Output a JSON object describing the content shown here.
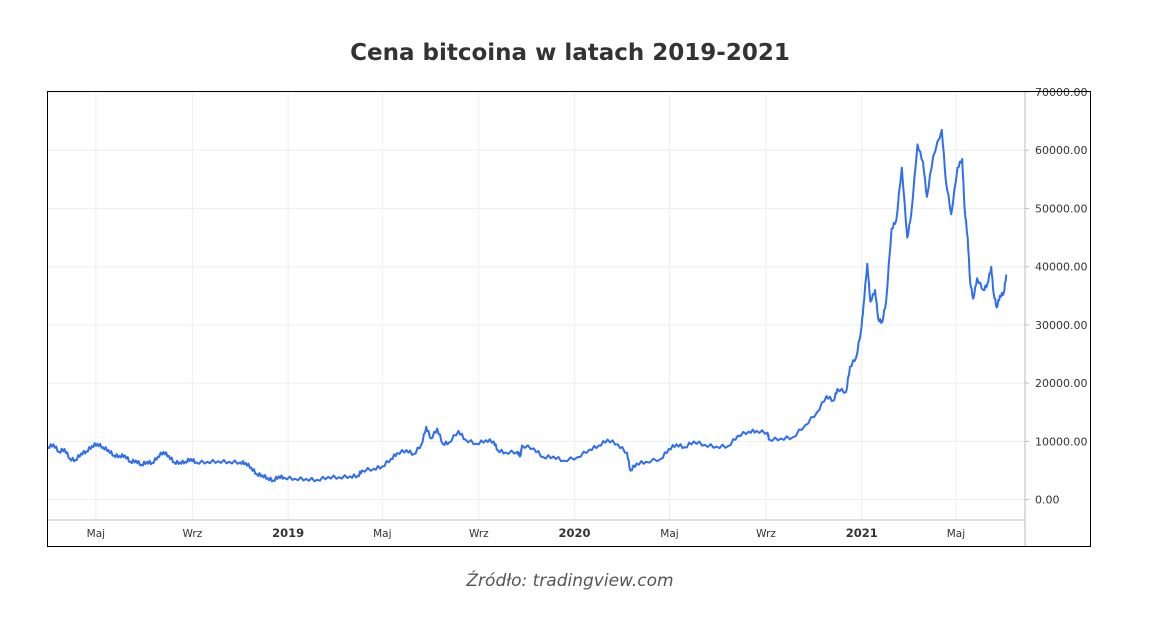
{
  "title": "Cena bitcoina w latach 2019-2021",
  "source": "Źródło: tradingview.com",
  "colors": {
    "line": "#2f6ef0",
    "grid": "#eeeeee",
    "frame": "#000000",
    "text": "#333333"
  },
  "chart_data": {
    "type": "line",
    "title": "Cena bitcoina w latach 2019-2021",
    "xlabel": "",
    "ylabel": "",
    "ylim": [
      -3500,
      70000
    ],
    "xlim": [
      "2018-03-01",
      "2021-07-28"
    ],
    "grid": true,
    "y_ticks": [
      {
        "value": 70000,
        "label": "70000.00"
      },
      {
        "value": 60000,
        "label": "60000.00"
      },
      {
        "value": 50000,
        "label": "50000.00"
      },
      {
        "value": 40000,
        "label": "40000.00"
      },
      {
        "value": 30000,
        "label": "30000.00"
      },
      {
        "value": 20000,
        "label": "20000.00"
      },
      {
        "value": 10000,
        "label": "10000.00"
      },
      {
        "value": 0,
        "label": "0.00"
      }
    ],
    "x_ticks": [
      {
        "date": "2018-05-01",
        "label": "Maj",
        "bold": false
      },
      {
        "date": "2018-09-01",
        "label": "Wrz",
        "bold": false
      },
      {
        "date": "2019-01-01",
        "label": "2019",
        "bold": true
      },
      {
        "date": "2019-05-01",
        "label": "Maj",
        "bold": false
      },
      {
        "date": "2019-09-01",
        "label": "Wrz",
        "bold": false
      },
      {
        "date": "2020-01-01",
        "label": "2020",
        "bold": true
      },
      {
        "date": "2020-05-01",
        "label": "Maj",
        "bold": false
      },
      {
        "date": "2020-09-01",
        "label": "Wrz",
        "bold": false
      },
      {
        "date": "2021-01-01",
        "label": "2021",
        "bold": true
      },
      {
        "date": "2021-05-01",
        "label": "Maj",
        "bold": false
      }
    ],
    "series": [
      {
        "color": "#2f6ef0",
        "points": [
          [
            "2018-03-01",
            9000
          ],
          [
            "2018-03-08",
            9500
          ],
          [
            "2018-03-15",
            8200
          ],
          [
            "2018-03-22",
            8700
          ],
          [
            "2018-03-29",
            7000
          ],
          [
            "2018-04-05",
            6800
          ],
          [
            "2018-04-12",
            7900
          ],
          [
            "2018-04-19",
            8300
          ],
          [
            "2018-04-26",
            9200
          ],
          [
            "2018-05-03",
            9600
          ],
          [
            "2018-05-10",
            9000
          ],
          [
            "2018-05-17",
            8500
          ],
          [
            "2018-05-24",
            7600
          ],
          [
            "2018-05-31",
            7500
          ],
          [
            "2018-06-07",
            7600
          ],
          [
            "2018-06-14",
            6500
          ],
          [
            "2018-06-21",
            6700
          ],
          [
            "2018-06-28",
            6000
          ],
          [
            "2018-07-05",
            6500
          ],
          [
            "2018-07-12",
            6300
          ],
          [
            "2018-07-19",
            7400
          ],
          [
            "2018-07-26",
            8200
          ],
          [
            "2018-08-02",
            7500
          ],
          [
            "2018-08-09",
            6400
          ],
          [
            "2018-08-16",
            6400
          ],
          [
            "2018-08-23",
            6500
          ],
          [
            "2018-08-30",
            7000
          ],
          [
            "2018-09-06",
            6400
          ],
          [
            "2018-09-20",
            6500
          ],
          [
            "2018-10-04",
            6600
          ],
          [
            "2018-10-18",
            6500
          ],
          [
            "2018-11-01",
            6400
          ],
          [
            "2018-11-08",
            6300
          ],
          [
            "2018-11-15",
            5500
          ],
          [
            "2018-11-22",
            4400
          ],
          [
            "2018-11-29",
            4200
          ],
          [
            "2018-12-06",
            3700
          ],
          [
            "2018-12-13",
            3300
          ],
          [
            "2018-12-20",
            4000
          ],
          [
            "2018-12-27",
            3800
          ],
          [
            "2019-01-10",
            3600
          ],
          [
            "2019-01-24",
            3550
          ],
          [
            "2019-02-07",
            3400
          ],
          [
            "2019-02-21",
            3900
          ],
          [
            "2019-03-07",
            3850
          ],
          [
            "2019-03-21",
            4000
          ],
          [
            "2019-03-31",
            4100
          ],
          [
            "2019-04-05",
            5000
          ],
          [
            "2019-04-20",
            5300
          ],
          [
            "2019-05-01",
            5700
          ],
          [
            "2019-05-12",
            7000
          ],
          [
            "2019-05-20",
            8000
          ],
          [
            "2019-06-01",
            8500
          ],
          [
            "2019-06-10",
            7800
          ],
          [
            "2019-06-20",
            9500
          ],
          [
            "2019-06-26",
            12500
          ],
          [
            "2019-07-02",
            10500
          ],
          [
            "2019-07-10",
            12200
          ],
          [
            "2019-07-17",
            9600
          ],
          [
            "2019-07-25",
            9800
          ],
          [
            "2019-08-06",
            11800
          ],
          [
            "2019-08-15",
            10300
          ],
          [
            "2019-08-29",
            9600
          ],
          [
            "2019-09-10",
            10200
          ],
          [
            "2019-09-20",
            10000
          ],
          [
            "2019-09-25",
            8500
          ],
          [
            "2019-10-05",
            8100
          ],
          [
            "2019-10-20",
            8200
          ],
          [
            "2019-10-24",
            7500
          ],
          [
            "2019-10-26",
            9300
          ],
          [
            "2019-11-10",
            8800
          ],
          [
            "2019-11-22",
            7300
          ],
          [
            "2019-12-05",
            7400
          ],
          [
            "2019-12-18",
            6700
          ],
          [
            "2020-01-05",
            7300
          ],
          [
            "2020-01-20",
            8600
          ],
          [
            "2020-02-01",
            9300
          ],
          [
            "2020-02-12",
            10300
          ],
          [
            "2020-02-25",
            9500
          ],
          [
            "2020-03-08",
            8000
          ],
          [
            "2020-03-12",
            5000
          ],
          [
            "2020-03-20",
            6200
          ],
          [
            "2020-04-01",
            6500
          ],
          [
            "2020-04-20",
            7000
          ],
          [
            "2020-04-30",
            8700
          ],
          [
            "2020-05-10",
            9500
          ],
          [
            "2020-05-20",
            9000
          ],
          [
            "2020-06-01",
            10000
          ],
          [
            "2020-06-15",
            9400
          ],
          [
            "2020-06-30",
            9100
          ],
          [
            "2020-07-15",
            9200
          ],
          [
            "2020-07-27",
            11000
          ],
          [
            "2020-08-10",
            11700
          ],
          [
            "2020-08-20",
            11800
          ],
          [
            "2020-09-03",
            11500
          ],
          [
            "2020-09-05",
            10300
          ],
          [
            "2020-09-20",
            10500
          ],
          [
            "2020-10-05",
            10700
          ],
          [
            "2020-10-21",
            12800
          ],
          [
            "2020-11-05",
            15000
          ],
          [
            "2020-11-17",
            17800
          ],
          [
            "2020-11-26",
            17000
          ],
          [
            "2020-12-01",
            19000
          ],
          [
            "2020-12-12",
            18500
          ],
          [
            "2020-12-17",
            22800
          ],
          [
            "2020-12-25",
            24500
          ],
          [
            "2020-12-31",
            29000
          ],
          [
            "2021-01-03",
            33000
          ],
          [
            "2021-01-08",
            40500
          ],
          [
            "2021-01-12",
            34000
          ],
          [
            "2021-01-18",
            36000
          ],
          [
            "2021-01-22",
            31000
          ],
          [
            "2021-01-27",
            30500
          ],
          [
            "2021-02-01",
            34000
          ],
          [
            "2021-02-08",
            46500
          ],
          [
            "2021-02-14",
            48000
          ],
          [
            "2021-02-21",
            57000
          ],
          [
            "2021-02-28",
            45000
          ],
          [
            "2021-03-05",
            49000
          ],
          [
            "2021-03-13",
            61000
          ],
          [
            "2021-03-20",
            58000
          ],
          [
            "2021-03-25",
            52000
          ],
          [
            "2021-04-02",
            59000
          ],
          [
            "2021-04-13",
            63500
          ],
          [
            "2021-04-18",
            55000
          ],
          [
            "2021-04-25",
            49000
          ],
          [
            "2021-05-03",
            57000
          ],
          [
            "2021-05-09",
            58500
          ],
          [
            "2021-05-12",
            50000
          ],
          [
            "2021-05-16",
            45000
          ],
          [
            "2021-05-19",
            37500
          ],
          [
            "2021-05-23",
            34500
          ],
          [
            "2021-05-28",
            38000
          ],
          [
            "2021-06-05",
            36000
          ],
          [
            "2021-06-10",
            37000
          ],
          [
            "2021-06-15",
            40000
          ],
          [
            "2021-06-18",
            35500
          ],
          [
            "2021-06-22",
            33000
          ],
          [
            "2021-06-26",
            35000
          ],
          [
            "2021-07-01",
            35500
          ],
          [
            "2021-07-04",
            38500
          ]
        ]
      }
    ]
  }
}
